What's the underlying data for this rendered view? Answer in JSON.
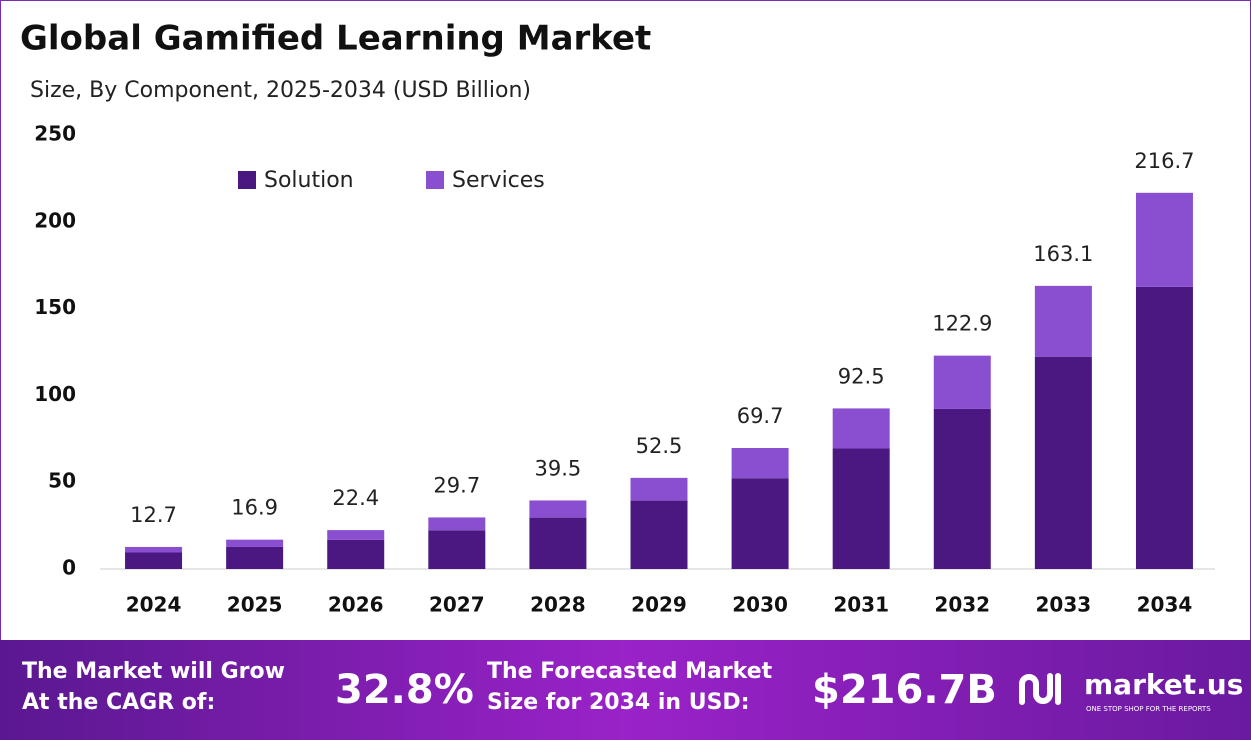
{
  "chart_data": {
    "type": "stacked_bar",
    "title": "Global Gamified Learning Market",
    "subtitle": "Size, By Component, 2025-2034 (USD Billion)",
    "categories": [
      "2024",
      "2025",
      "2026",
      "2027",
      "2028",
      "2029",
      "2030",
      "2031",
      "2032",
      "2033",
      "2034"
    ],
    "series": [
      {
        "name": "Solution",
        "color": "#4a1880",
        "values": [
          9.5,
          12.7,
          16.8,
          22.3,
          29.6,
          39.4,
          52.3,
          69.4,
          92.2,
          122.3,
          162.5
        ]
      },
      {
        "name": "Services",
        "color": "#8a4fd0",
        "values": [
          3.2,
          4.2,
          5.6,
          7.4,
          9.9,
          13.1,
          17.4,
          23.1,
          30.7,
          40.8,
          54.2
        ]
      }
    ],
    "totals": [
      12.7,
      16.9,
      22.4,
      29.7,
      39.5,
      52.5,
      69.7,
      92.5,
      122.9,
      163.1,
      216.7
    ],
    "ylim": [
      0,
      250
    ],
    "yticks": [
      0,
      50,
      100,
      150,
      200,
      250
    ],
    "grid": false,
    "legend": "top-left"
  },
  "footer": {
    "cagr_text": [
      "The Market will Grow",
      "At the CAGR of:"
    ],
    "cagr_value": "32.8%",
    "forecast_text": [
      "The Forecasted Market",
      "Size for 2034 in USD:"
    ],
    "forecast_value": "$216.7B",
    "brand": "market.us",
    "tagline": "ONE STOP SHOP FOR THE REPORTS"
  }
}
